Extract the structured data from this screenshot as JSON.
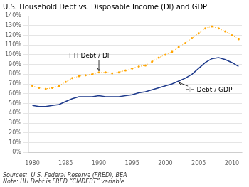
{
  "chart_data": {
    "type": "line",
    "title": "U.S. Household Debt vs. Disposable Income (DI) and GDP",
    "source_note": "Sources:  U.S. Federal Reserve (FRED), BEA\nNote: HH Debt is FRED “CMDEBT” variable",
    "x": [
      1980,
      1981,
      1982,
      1983,
      1984,
      1985,
      1986,
      1987,
      1988,
      1989,
      1990,
      1991,
      1992,
      1993,
      1994,
      1995,
      1996,
      1997,
      1998,
      1999,
      2000,
      2001,
      2002,
      2003,
      2004,
      2005,
      2006,
      2007,
      2008,
      2009,
      2010,
      2011
    ],
    "series": [
      {
        "name": "HH Debt / DI",
        "color": "#FFA500",
        "marker": "o",
        "line_style": "dotted",
        "values": [
          0.68,
          0.66,
          0.65,
          0.66,
          0.68,
          0.72,
          0.76,
          0.78,
          0.79,
          0.8,
          0.82,
          0.82,
          0.81,
          0.82,
          0.84,
          0.86,
          0.88,
          0.89,
          0.93,
          0.97,
          1.0,
          1.03,
          1.08,
          1.12,
          1.17,
          1.22,
          1.27,
          1.29,
          1.27,
          1.24,
          1.2,
          1.16
        ]
      },
      {
        "name": "HH Debt / GDP",
        "color": "#1F3B8C",
        "marker": "none",
        "line_style": "solid",
        "values": [
          0.48,
          0.47,
          0.47,
          0.48,
          0.49,
          0.52,
          0.55,
          0.57,
          0.57,
          0.57,
          0.58,
          0.57,
          0.57,
          0.57,
          0.58,
          0.59,
          0.61,
          0.62,
          0.64,
          0.66,
          0.68,
          0.7,
          0.73,
          0.76,
          0.8,
          0.86,
          0.92,
          0.96,
          0.97,
          0.95,
          0.92,
          0.88
        ]
      }
    ],
    "annotations": [
      {
        "text": "HH Debt / DI",
        "x": 1990.0,
        "y": 0.835
      },
      {
        "text": "HH Debt / GDP",
        "x": 2002.0,
        "y": 0.715
      }
    ],
    "xlim": [
      1979.5,
      2011.5
    ],
    "xticks": [
      1980,
      1985,
      1990,
      1995,
      2000,
      2005,
      2010
    ],
    "ylim": [
      0.0,
      1.4
    ],
    "yticks": [
      {
        "value": 0.0,
        "label": "0%"
      },
      {
        "value": 0.1,
        "label": "10%"
      },
      {
        "value": 0.2,
        "label": "20%"
      },
      {
        "value": 0.3,
        "label": "30%"
      },
      {
        "value": 0.4,
        "label": "40%"
      },
      {
        "value": 0.5,
        "label": "50%"
      },
      {
        "value": 0.6,
        "label": "60%"
      },
      {
        "value": 0.7,
        "label": "70%"
      },
      {
        "value": 0.8,
        "label": "80%"
      },
      {
        "value": 0.9,
        "label": "90%"
      },
      {
        "value": 1.0,
        "label": "100%"
      },
      {
        "value": 1.1,
        "label": "110%"
      },
      {
        "value": 1.2,
        "label": "120%"
      },
      {
        "value": 1.3,
        "label": "130%"
      },
      {
        "value": 1.4,
        "label": "140%"
      }
    ],
    "grid": "y",
    "legend": false
  }
}
